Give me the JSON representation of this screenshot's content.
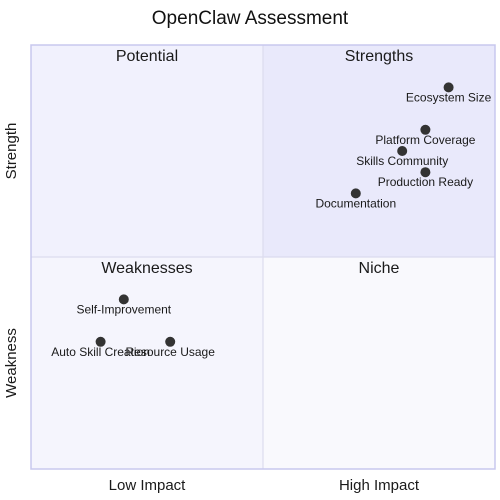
{
  "chart_data": {
    "type": "scatter",
    "title": "OpenClaw Assessment",
    "x_axis": {
      "low_label": "Low Impact",
      "high_label": "High Impact",
      "range": [
        0,
        1
      ]
    },
    "y_axis": {
      "low_label": "Weakness",
      "high_label": "Strength",
      "range": [
        0,
        1
      ]
    },
    "quadrants": {
      "top_left": "Potential",
      "top_right": "Strengths",
      "bottom_left": "Weaknesses",
      "bottom_right": "Niche"
    },
    "points": [
      {
        "label": "Ecosystem Size",
        "x": 0.9,
        "y": 0.9
      },
      {
        "label": "Platform Coverage",
        "x": 0.85,
        "y": 0.8
      },
      {
        "label": "Skills Community",
        "x": 0.8,
        "y": 0.75
      },
      {
        "label": "Production Ready",
        "x": 0.85,
        "y": 0.7
      },
      {
        "label": "Documentation",
        "x": 0.7,
        "y": 0.65
      },
      {
        "label": "Self-Improvement",
        "x": 0.2,
        "y": 0.4
      },
      {
        "label": "Auto Skill Creation",
        "x": 0.15,
        "y": 0.3
      },
      {
        "label": "Resource Usage",
        "x": 0.3,
        "y": 0.3
      }
    ],
    "colors": {
      "quadrant_top_left": "#f1f1fd",
      "quadrant_top_right": "#e9e9fb",
      "quadrant_bottom_left": "#f5f5fd",
      "quadrant_bottom_right": "#f9f9fd",
      "border": "#c8c8ee",
      "divider": "#dcdcee",
      "point": "#333333"
    }
  }
}
